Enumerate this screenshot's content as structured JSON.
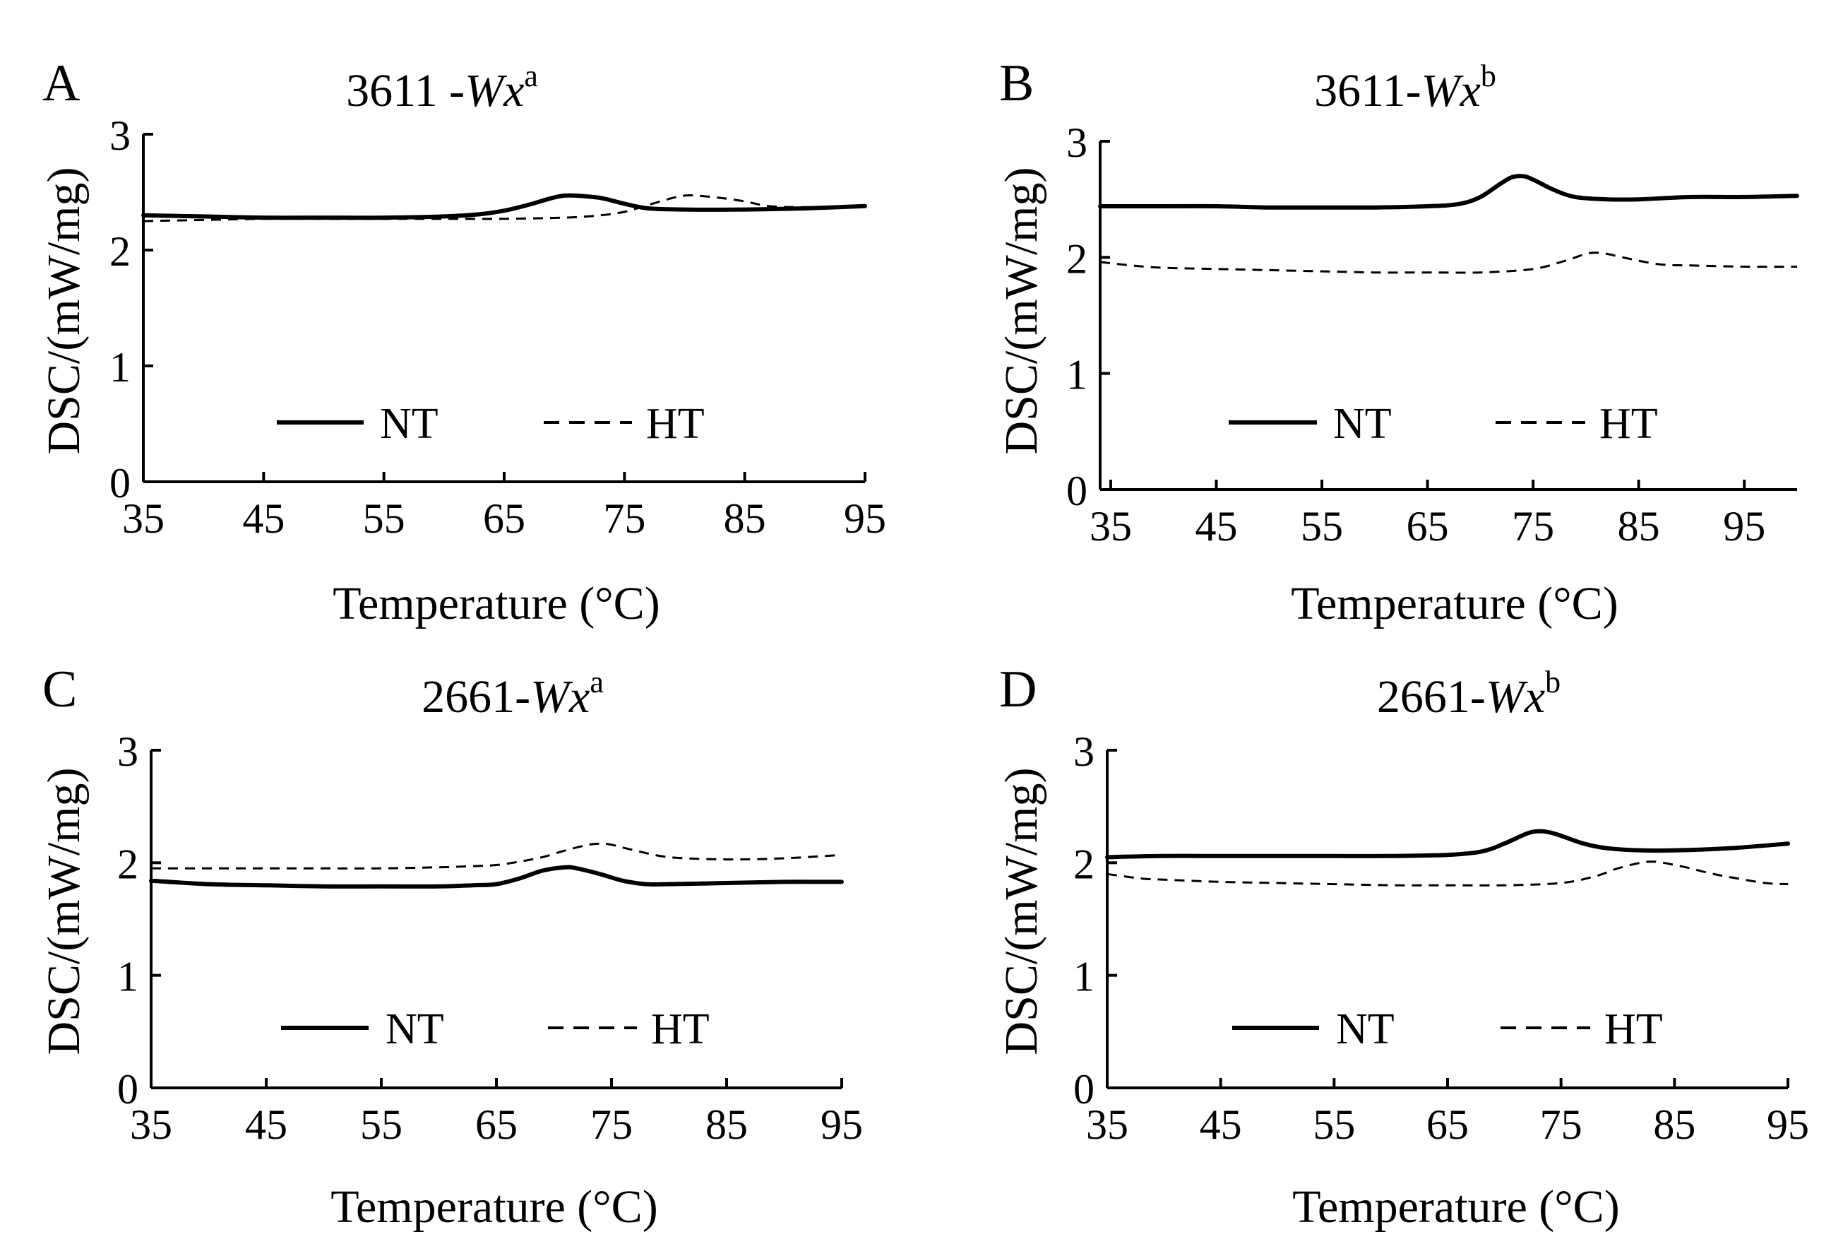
{
  "figure": {
    "panel_letters": [
      "A",
      "B",
      "C",
      "D"
    ]
  },
  "chart_data": [
    {
      "type": "line",
      "panel": "A",
      "title": {
        "prefix": "3611 -",
        "italic": "Wx",
        "sup": "a"
      },
      "xlabel": "Temperature (°C)",
      "ylabel": "DSC/(mW/mg)",
      "xlim": [
        35,
        95
      ],
      "ylim": [
        0,
        3
      ],
      "xticks": [
        35,
        45,
        55,
        65,
        75,
        85,
        95
      ],
      "yticks": [
        0,
        1,
        2,
        3
      ],
      "legend": [
        "NT",
        "HT"
      ],
      "series": [
        {
          "name": "NT",
          "style": "solid",
          "x": [
            35,
            40,
            45,
            50,
            55,
            60,
            63,
            65,
            67,
            69,
            70,
            71,
            73,
            75,
            77,
            80,
            85,
            90,
            95
          ],
          "y": [
            2.3,
            2.29,
            2.28,
            2.28,
            2.28,
            2.29,
            2.31,
            2.34,
            2.39,
            2.45,
            2.47,
            2.47,
            2.45,
            2.4,
            2.36,
            2.35,
            2.35,
            2.36,
            2.38
          ]
        },
        {
          "name": "HT",
          "style": "dashed",
          "x": [
            35,
            40,
            45,
            50,
            55,
            60,
            65,
            70,
            73,
            75,
            77,
            79,
            80,
            81,
            83,
            85,
            87,
            90,
            95
          ],
          "y": [
            2.25,
            2.26,
            2.27,
            2.27,
            2.27,
            2.27,
            2.27,
            2.28,
            2.3,
            2.33,
            2.39,
            2.45,
            2.47,
            2.47,
            2.45,
            2.42,
            2.38,
            2.37,
            2.38
          ]
        }
      ]
    },
    {
      "type": "line",
      "panel": "B",
      "title": {
        "prefix": "3611-",
        "italic": "Wx",
        "sup": "b"
      },
      "xlabel": "Temperature (°C)",
      "ylabel": "DSC/(mW/mg)",
      "xlim": [
        34,
        100
      ],
      "ylim": [
        0,
        3
      ],
      "xticks": [
        35,
        45,
        55,
        65,
        75,
        85,
        95
      ],
      "yticks": [
        0,
        1,
        2,
        3
      ],
      "legend": [
        "NT",
        "HT"
      ],
      "series": [
        {
          "name": "NT",
          "style": "solid",
          "x": [
            34,
            40,
            45,
            50,
            55,
            60,
            65,
            68,
            70,
            72,
            73,
            74,
            75,
            77,
            79,
            82,
            85,
            90,
            95,
            100
          ],
          "y": [
            2.44,
            2.44,
            2.44,
            2.43,
            2.43,
            2.43,
            2.44,
            2.46,
            2.52,
            2.64,
            2.69,
            2.7,
            2.67,
            2.58,
            2.52,
            2.5,
            2.5,
            2.52,
            2.52,
            2.53
          ]
        },
        {
          "name": "HT",
          "style": "dashed",
          "x": [
            34,
            37,
            40,
            45,
            50,
            55,
            60,
            65,
            70,
            75,
            78,
            80,
            81,
            82,
            84,
            87,
            90,
            95,
            100
          ],
          "y": [
            1.96,
            1.93,
            1.91,
            1.9,
            1.89,
            1.88,
            1.87,
            1.87,
            1.87,
            1.9,
            1.97,
            2.03,
            2.04,
            2.03,
            1.99,
            1.94,
            1.93,
            1.92,
            1.92
          ]
        }
      ]
    },
    {
      "type": "line",
      "panel": "C",
      "title": {
        "prefix": "2661-",
        "italic": "Wx",
        "sup": "a"
      },
      "xlabel": "Temperature (°C)",
      "ylabel": "DSC/(mW/mg)",
      "xlim": [
        35,
        95
      ],
      "ylim": [
        0,
        3
      ],
      "xticks": [
        35,
        45,
        55,
        65,
        75,
        85,
        95
      ],
      "yticks": [
        0,
        1,
        2,
        3
      ],
      "legend": [
        "NT",
        "HT"
      ],
      "series": [
        {
          "name": "NT",
          "style": "solid",
          "x": [
            35,
            40,
            45,
            50,
            55,
            60,
            63,
            65,
            67,
            69,
            71,
            72,
            74,
            76,
            78,
            80,
            85,
            90,
            95
          ],
          "y": [
            1.84,
            1.81,
            1.8,
            1.79,
            1.79,
            1.79,
            1.8,
            1.81,
            1.86,
            1.93,
            1.96,
            1.95,
            1.9,
            1.84,
            1.81,
            1.81,
            1.82,
            1.83,
            1.83
          ]
        },
        {
          "name": "HT",
          "style": "dashed",
          "x": [
            35,
            40,
            45,
            50,
            55,
            60,
            63,
            65,
            67,
            69,
            71,
            73,
            74,
            75,
            77,
            80,
            85,
            90,
            95
          ],
          "y": [
            1.95,
            1.95,
            1.95,
            1.95,
            1.95,
            1.96,
            1.97,
            1.98,
            2.01,
            2.05,
            2.11,
            2.16,
            2.17,
            2.16,
            2.11,
            2.05,
            2.03,
            2.04,
            2.07
          ]
        }
      ]
    },
    {
      "type": "line",
      "panel": "D",
      "title": {
        "prefix": "2661-",
        "italic": "Wx",
        "sup": "b"
      },
      "xlabel": "Temperature (°C)",
      "ylabel": "DSC/(mW/mg)",
      "xlim": [
        35,
        95
      ],
      "ylim": [
        0,
        3
      ],
      "xticks": [
        35,
        45,
        55,
        65,
        75,
        85,
        95
      ],
      "yticks": [
        0,
        1,
        2,
        3
      ],
      "legend": [
        "NT",
        "HT"
      ],
      "series": [
        {
          "name": "NT",
          "style": "solid",
          "x": [
            35,
            40,
            45,
            50,
            55,
            60,
            65,
            68,
            70,
            72,
            73,
            74,
            75,
            77,
            79,
            82,
            85,
            90,
            95
          ],
          "y": [
            2.05,
            2.06,
            2.06,
            2.06,
            2.06,
            2.06,
            2.07,
            2.1,
            2.17,
            2.26,
            2.28,
            2.27,
            2.24,
            2.17,
            2.13,
            2.11,
            2.11,
            2.13,
            2.17
          ]
        },
        {
          "name": "HT",
          "style": "dashed",
          "x": [
            35,
            38,
            40,
            45,
            50,
            55,
            60,
            65,
            70,
            75,
            78,
            80,
            82,
            83,
            84,
            86,
            88,
            90,
            93,
            95
          ],
          "y": [
            1.9,
            1.86,
            1.85,
            1.83,
            1.82,
            1.81,
            1.8,
            1.8,
            1.8,
            1.82,
            1.88,
            1.95,
            2.0,
            2.01,
            2.0,
            1.96,
            1.91,
            1.87,
            1.82,
            1.81
          ]
        }
      ]
    }
  ]
}
